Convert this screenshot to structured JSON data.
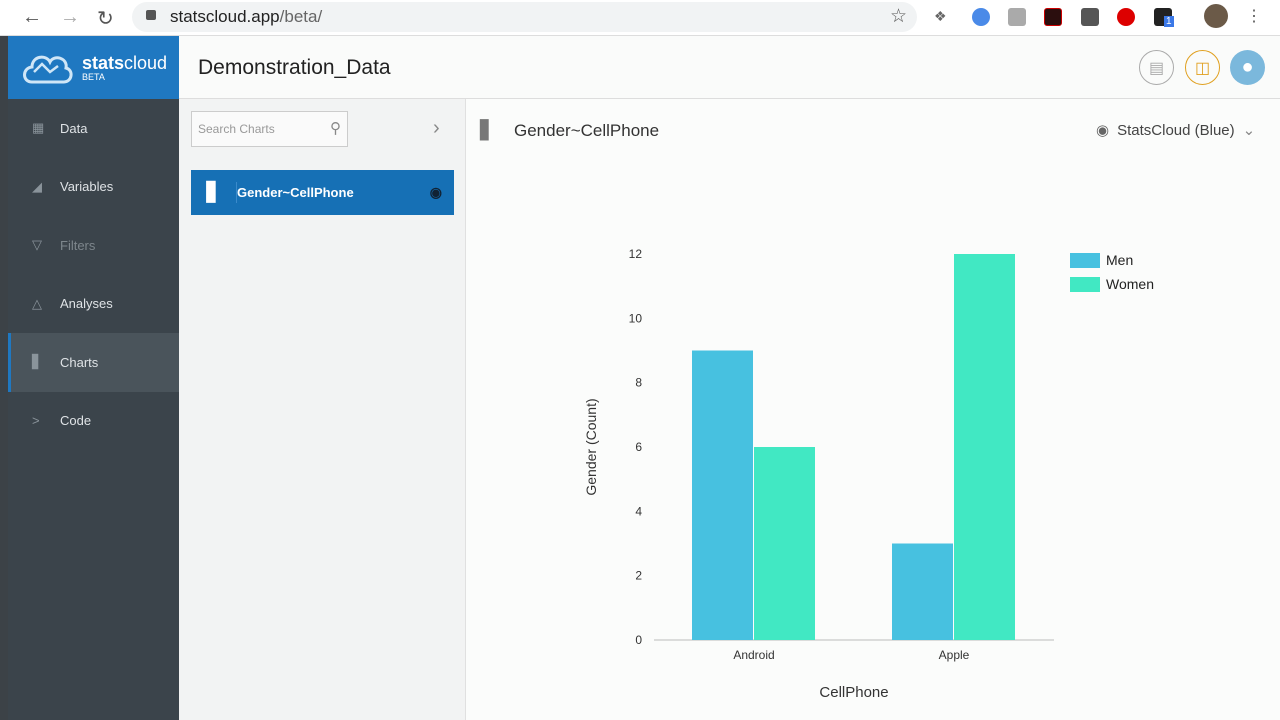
{
  "browser": {
    "url_host": "statscloud.app",
    "url_path": "/beta/",
    "badge": "1"
  },
  "brand": {
    "name_bold": "stats",
    "name_light": "cloud",
    "tag": "BETA"
  },
  "header": {
    "title": "Demonstration_Data"
  },
  "sidebar": {
    "items": [
      {
        "label": "Data",
        "icon": "grid-icon"
      },
      {
        "label": "Variables",
        "icon": "variables-icon"
      },
      {
        "label": "Filters",
        "icon": "filter-icon"
      },
      {
        "label": "Analyses",
        "icon": "flask-icon"
      },
      {
        "label": "Charts",
        "icon": "bar-chart-icon",
        "active": true
      },
      {
        "label": "Code",
        "icon": "chevron-right-icon"
      }
    ]
  },
  "charts_panel": {
    "search_placeholder": "Search Charts",
    "items": [
      {
        "label": "Gender~CellPhone"
      }
    ]
  },
  "chart_view": {
    "title": "Gender~CellPhone",
    "theme": "StatsCloud (Blue)"
  },
  "chart_data": {
    "type": "bar",
    "categories": [
      "Android",
      "Apple"
    ],
    "series": [
      {
        "name": "Men",
        "values": [
          9,
          3
        ],
        "color": "#47c1e0"
      },
      {
        "name": "Women",
        "values": [
          6,
          12
        ],
        "color": "#41e8c3"
      }
    ],
    "xlabel": "CellPhone",
    "ylabel": "Gender (Count)",
    "ylim": [
      0,
      12
    ],
    "yticks": [
      0,
      2,
      4,
      6,
      8,
      10,
      12
    ],
    "grid": false,
    "legend": "top-right"
  }
}
